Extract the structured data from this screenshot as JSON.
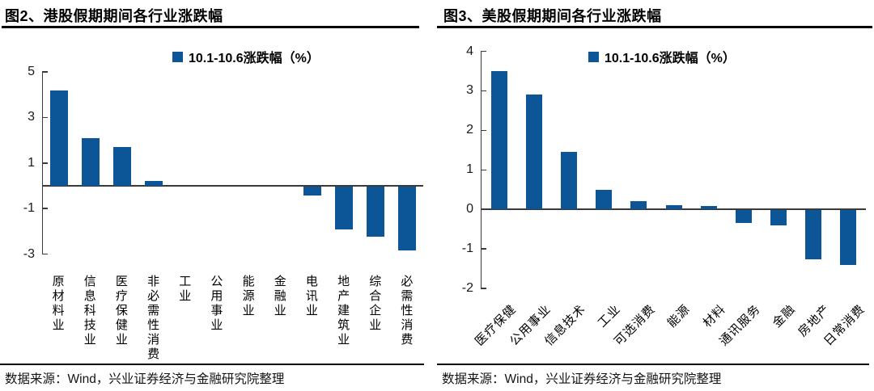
{
  "source_note": "数据来源：Wind，兴业证券经济与金融研究院整理",
  "colors": {
    "bar": "#0C5697",
    "axis": "#3a3a3a",
    "rule": "#000000"
  },
  "chart_data": [
    {
      "type": "bar",
      "title": "图2、港股假期期间各行业涨跌幅",
      "legend": [
        "10.1-10.6涨跌幅（%）"
      ],
      "legend_position": "top",
      "categories": [
        "原材料业",
        "信息科技业",
        "医疗保健业",
        "非必需性消费",
        "工业",
        "公用事业",
        "能源业",
        "金融业",
        "电讯业",
        "地产建筑业",
        "综合企业",
        "必需性消费"
      ],
      "values": [
        4.2,
        2.1,
        1.7,
        0.2,
        0,
        0,
        0,
        0,
        -0.4,
        -1.9,
        -2.2,
        -2.8
      ],
      "xlabel": "",
      "ylabel": "",
      "ylim": [
        -3,
        5
      ],
      "yticks": [
        5,
        3,
        1,
        -1,
        -3
      ],
      "grid": false
    },
    {
      "type": "bar",
      "title": "图3、美股假期期间各行业涨跌幅",
      "legend": [
        "10.1-10.6涨跌幅（%）"
      ],
      "legend_position": "top",
      "categories": [
        "医疗保健",
        "公用事业",
        "信息技术",
        "工业",
        "可选消费",
        "能源",
        "材料",
        "通讯服务",
        "金融",
        "房地产",
        "日常消费"
      ],
      "values": [
        3.5,
        2.9,
        1.45,
        0.5,
        0.2,
        0.1,
        0.08,
        -0.33,
        -0.4,
        -1.25,
        -1.4
      ],
      "xlabel": "",
      "ylabel": "",
      "ylim": [
        -2,
        4
      ],
      "yticks": [
        4,
        3,
        2,
        1,
        0,
        -1,
        -2
      ],
      "grid": false
    }
  ]
}
